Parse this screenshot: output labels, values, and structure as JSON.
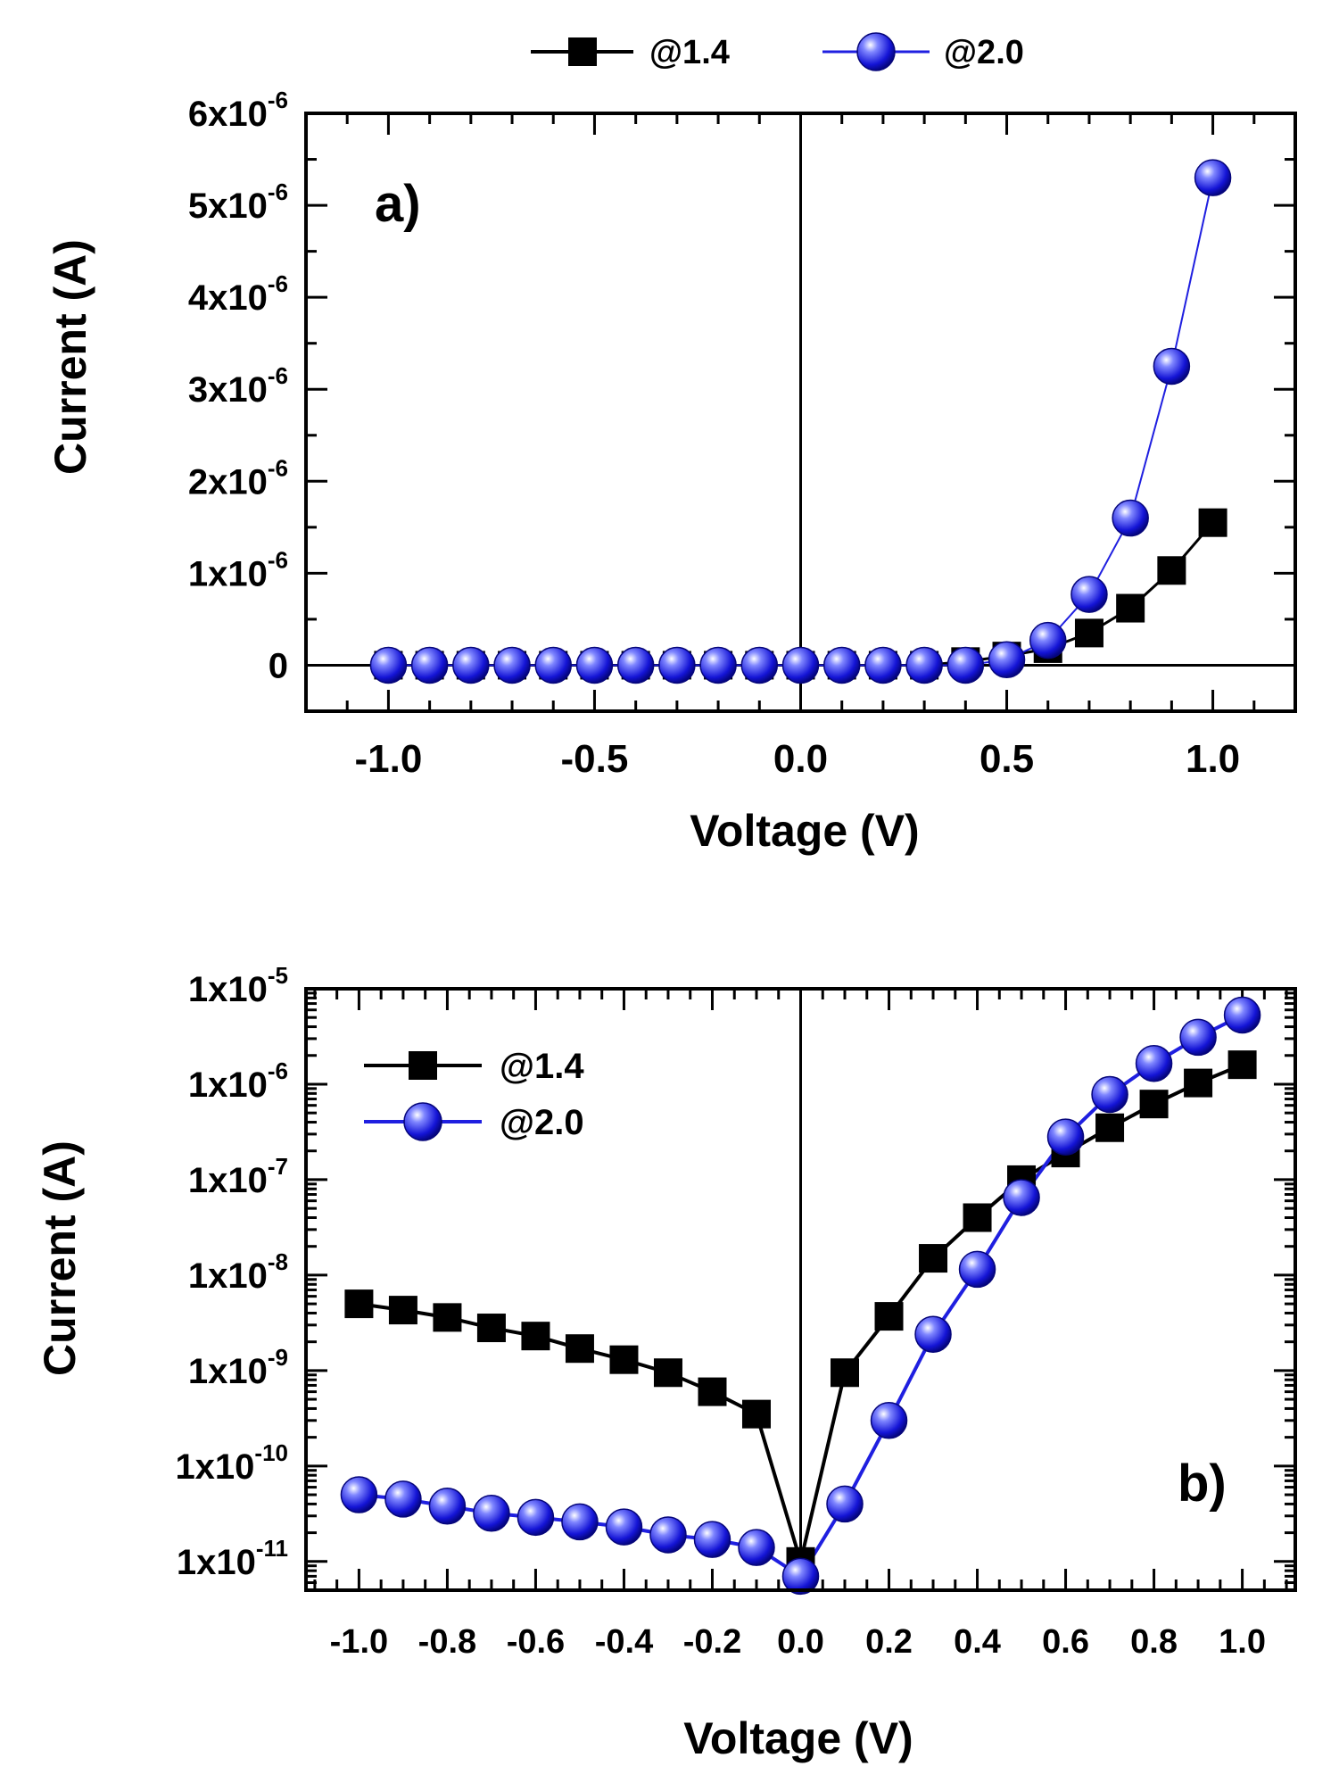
{
  "chart_data": [
    {
      "panel": "a)",
      "type": "line",
      "xlabel": "Voltage (V)",
      "ylabel": "Current (A)",
      "xlim": [
        -1.2,
        1.2
      ],
      "ylim": [
        -5e-07,
        6e-06
      ],
      "xticks": [
        -1.0,
        -0.5,
        0.0,
        0.5,
        1.0
      ],
      "xtick_labels": [
        "-1.0",
        "-0.5",
        "0.0",
        "0.5",
        "1.0"
      ],
      "yticks": [
        0,
        1e-06,
        2e-06,
        3e-06,
        4e-06,
        5e-06,
        6e-06
      ],
      "ytick_labels": [
        {
          "base": "0",
          "exp": ""
        },
        {
          "base": "1x10",
          "exp": "-6"
        },
        {
          "base": "2x10",
          "exp": "-6"
        },
        {
          "base": "3x10",
          "exp": "-6"
        },
        {
          "base": "4x10",
          "exp": "-6"
        },
        {
          "base": "5x10",
          "exp": "-6"
        },
        {
          "base": "6x10",
          "exp": "-6"
        }
      ],
      "legend_position": "top, outside",
      "grid": false,
      "x": [
        -1.0,
        -0.9,
        -0.8,
        -0.7,
        -0.6,
        -0.5,
        -0.4,
        -0.3,
        -0.2,
        -0.1,
        0.0,
        0.1,
        0.2,
        0.3,
        0.4,
        0.5,
        0.6,
        0.7,
        0.8,
        0.9,
        1.0
      ],
      "series": [
        {
          "name": "@1.4",
          "marker": "square",
          "color": "#000000",
          "values": [
            0,
            0,
            0,
            0,
            0,
            0,
            0,
            0,
            0,
            0,
            0,
            0,
            0,
            0,
            4e-08,
            1e-07,
            1.8e-07,
            3.5e-07,
            6.2e-07,
            1.03e-06,
            1.55e-06
          ]
        },
        {
          "name": "@2.0",
          "marker": "sphere",
          "color": "#1f1fe0",
          "values": [
            0,
            0,
            0,
            0,
            0,
            0,
            0,
            0,
            0,
            0,
            0,
            0,
            0,
            0,
            0,
            6e-08,
            2.7e-07,
            7.7e-07,
            1.6e-06,
            3.25e-06,
            5.3e-06
          ]
        }
      ]
    },
    {
      "panel": "b)",
      "type": "line",
      "yscale": "log",
      "xlabel": "Voltage (V)",
      "ylabel": "Current (A)",
      "xlim": [
        -1.12,
        1.12
      ],
      "ylim": [
        5e-12,
        1e-05
      ],
      "xticks": [
        -1.0,
        -0.8,
        -0.6,
        -0.4,
        -0.2,
        0.0,
        0.2,
        0.4,
        0.6,
        0.8,
        1.0
      ],
      "xtick_labels": [
        "-1.0",
        "-0.8",
        "-0.6",
        "-0.4",
        "-0.2",
        "0.0",
        "0.2",
        "0.4",
        "0.6",
        "0.8",
        "1.0"
      ],
      "yticks": [
        1e-11,
        1e-10,
        1e-09,
        1e-08,
        1e-07,
        1e-06,
        1e-05
      ],
      "ytick_labels": [
        {
          "base": "1x10",
          "exp": "-11"
        },
        {
          "base": "1x10",
          "exp": "-10"
        },
        {
          "base": "1x10",
          "exp": "-9"
        },
        {
          "base": "1x10",
          "exp": "-8"
        },
        {
          "base": "1x10",
          "exp": "-7"
        },
        {
          "base": "1x10",
          "exp": "-6"
        },
        {
          "base": "1x10",
          "exp": "-5"
        }
      ],
      "legend_position": "top-left, inside",
      "grid": false,
      "x": [
        -1.0,
        -0.9,
        -0.8,
        -0.7,
        -0.6,
        -0.5,
        -0.4,
        -0.3,
        -0.2,
        -0.1,
        0.0,
        0.1,
        0.2,
        0.3,
        0.4,
        0.5,
        0.6,
        0.7,
        0.8,
        0.9,
        1.0
      ],
      "series": [
        {
          "name": "@1.4",
          "marker": "square",
          "color": "#000000",
          "values": [
            5e-09,
            4.3e-09,
            3.6e-09,
            2.8e-09,
            2.3e-09,
            1.7e-09,
            1.3e-09,
            9.5e-10,
            6e-10,
            3.5e-10,
            1e-11,
            9.5e-10,
            3.7e-09,
            1.5e-08,
            4e-08,
            1e-07,
            1.9e-07,
            3.5e-07,
            6.2e-07,
            1.03e-06,
            1.6e-06
          ]
        },
        {
          "name": "@2.0",
          "marker": "sphere",
          "color": "#1f1fe0",
          "values": [
            5e-11,
            4.5e-11,
            3.8e-11,
            3.2e-11,
            2.9e-11,
            2.6e-11,
            2.3e-11,
            1.9e-11,
            1.7e-11,
            1.4e-11,
            7e-12,
            4e-11,
            3e-10,
            2.4e-09,
            1.15e-08,
            6.5e-08,
            2.8e-07,
            7.8e-07,
            1.65e-06,
            3.1e-06,
            5.3e-06
          ]
        }
      ]
    }
  ]
}
